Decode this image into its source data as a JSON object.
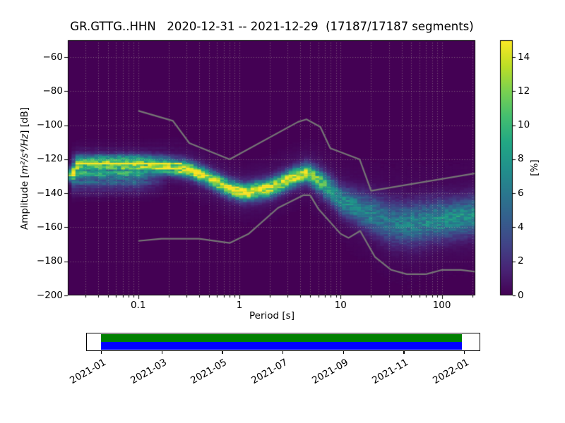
{
  "chart_data": {
    "type": "heatmap",
    "title": "GR.GTTG..HHN   2020-12-31 -- 2021-12-29  (17187/17187 segments)",
    "station": "GR.GTTG..HHN",
    "date_range": "2020-12-31 -- 2021-12-29",
    "segments": "17187/17187 segments",
    "xlabel": "Period [s]",
    "ylabel": {
      "prefix": "Amplitude [",
      "math": "m²/s⁴/Hz",
      "suffix": "] [dB]"
    },
    "x_scale": "log",
    "xlim": [
      0.02,
      216
    ],
    "x_ticks": [
      0.1,
      1,
      10,
      100
    ],
    "ylim": [
      -200,
      -50
    ],
    "y_ticks": [
      -60,
      -80,
      -100,
      -120,
      -140,
      -160,
      -180,
      -200
    ],
    "grid": true,
    "colorbar": {
      "label": "[%]",
      "min": 0,
      "max": 15,
      "ticks": [
        0,
        2,
        4,
        6,
        8,
        10,
        12,
        14
      ],
      "colormap": "viridis"
    },
    "psd_ridge": {
      "columns": [
        "period_s",
        "mode_db",
        "peak_percent",
        "sigma_db"
      ],
      "points": [
        [
          0.02,
          -129.0,
          10.0,
          2.5
        ],
        [
          0.0227,
          -129.0,
          10.0,
          2.5
        ],
        [
          0.025,
          -122.0,
          10.0,
          2.2
        ],
        [
          0.063,
          -121.5,
          10.0,
          2.2
        ],
        [
          0.126,
          -122.5,
          11.0,
          2.5
        ],
        [
          0.2,
          -124.0,
          13.0,
          3.0
        ],
        [
          0.32,
          -126.0,
          14.0,
          3.0
        ],
        [
          0.5,
          -131.0,
          13.0,
          3.2
        ],
        [
          0.79,
          -137.0,
          14.0,
          3.2
        ],
        [
          1.12,
          -139.5,
          15.0,
          3.2
        ],
        [
          2.0,
          -137.0,
          13.0,
          3.5
        ],
        [
          3.5,
          -130.5,
          13.0,
          3.5
        ],
        [
          4.6,
          -128.0,
          13.0,
          3.5
        ],
        [
          6.3,
          -133.0,
          10.0,
          4.5
        ],
        [
          8.0,
          -138.0,
          8.0,
          5.0
        ],
        [
          10.0,
          -144.0,
          6.5,
          5.5
        ],
        [
          14.0,
          -148.0,
          6.5,
          6.0
        ],
        [
          20.0,
          -152.0,
          6.0,
          7.0
        ],
        [
          32.0,
          -157.0,
          5.5,
          8.0
        ],
        [
          50.0,
          -158.0,
          6.0,
          8.0
        ],
        [
          79.0,
          -156.0,
          6.5,
          7.5
        ],
        [
          126.0,
          -155.0,
          7.0,
          7.0
        ],
        [
          219.0,
          -153.0,
          7.0,
          7.0
        ]
      ],
      "secondary_band": {
        "period_range_s": [
          0.0227,
          0.2
        ],
        "center_db": -128,
        "sigma_db": 6,
        "peak_percent": 6.5
      }
    },
    "noise_models": {
      "nhnm": [
        [
          0.1,
          -91.5
        ],
        [
          0.22,
          -97.4
        ],
        [
          0.32,
          -110.5
        ],
        [
          0.8,
          -120.0
        ],
        [
          3.8,
          -98.0
        ],
        [
          4.6,
          -96.5
        ],
        [
          6.3,
          -101.0
        ],
        [
          7.9,
          -113.5
        ],
        [
          15.4,
          -120.0
        ],
        [
          20.0,
          -138.5
        ],
        [
          216.0,
          -128.2
        ]
      ],
      "nlnm": [
        [
          0.1,
          -168.0
        ],
        [
          0.17,
          -166.7
        ],
        [
          0.4,
          -166.7
        ],
        [
          0.8,
          -169.2
        ],
        [
          1.24,
          -163.7
        ],
        [
          2.4,
          -148.6
        ],
        [
          4.3,
          -141.1
        ],
        [
          5.0,
          -141.1
        ],
        [
          6.0,
          -149.0
        ],
        [
          10.0,
          -163.8
        ],
        [
          12.0,
          -166.2
        ],
        [
          15.6,
          -162.1
        ],
        [
          21.9,
          -177.5
        ],
        [
          31.6,
          -185.0
        ],
        [
          45.0,
          -187.5
        ],
        [
          70.0,
          -187.5
        ],
        [
          101.0,
          -185.0
        ],
        [
          154.0,
          -185.0
        ],
        [
          216.0,
          -186.1
        ]
      ]
    }
  },
  "timeline": {
    "tick_labels": [
      "2021-01",
      "2021-03",
      "2021-05",
      "2021-07",
      "2021-09",
      "2021-11",
      "2022-01"
    ],
    "span": {
      "start": "2020-12-31",
      "end": "2021-12-29"
    },
    "bars": [
      {
        "name": "data-availability-total",
        "color": "#008000"
      },
      {
        "name": "data-availability-selected",
        "color": "#0000ff"
      }
    ]
  },
  "colors": {
    "figure_background": "#ffffff",
    "axes_frame": "#000000",
    "noise_model_line": "#767676",
    "grid_dots": "#bdb8a8",
    "viridis_stops": [
      "#440154",
      "#482475",
      "#414487",
      "#355f8d",
      "#2a788e",
      "#21918c",
      "#22a884",
      "#44bf70",
      "#7ad151",
      "#bddf26",
      "#fde725"
    ]
  }
}
